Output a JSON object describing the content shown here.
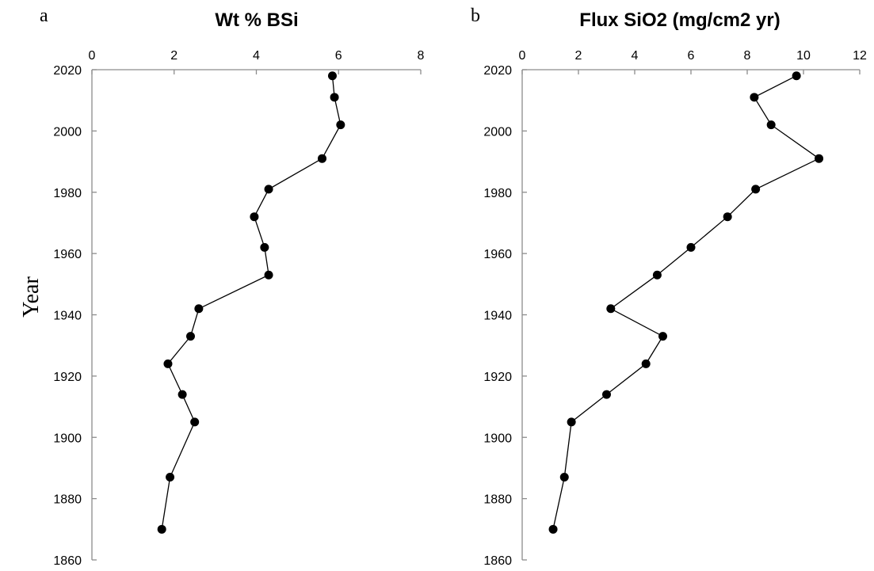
{
  "figure": {
    "ylabel": "Year",
    "colors": {
      "marker": "#000000",
      "line": "#000000",
      "axis": "#8c8c8c"
    }
  },
  "chart_data": [
    {
      "type": "line",
      "panel": "a",
      "title": "Wt % BSi",
      "xlabel": "",
      "ylabel": "Year",
      "xlim": [
        0,
        8
      ],
      "ylim": [
        1860,
        2020
      ],
      "x_ticks": [
        0,
        2,
        4,
        6,
        8
      ],
      "y_ticks": [
        1860,
        1880,
        1900,
        1920,
        1940,
        1960,
        1980,
        2000,
        2020
      ],
      "x_axis_position": "top",
      "y_reversed": false,
      "grid": false,
      "legend": "none",
      "series": [
        {
          "x": [
            5.85,
            5.9,
            6.05,
            5.6,
            4.3,
            3.95,
            4.2,
            4.3,
            2.6,
            2.4,
            1.85,
            2.2,
            2.5,
            1.9,
            1.7
          ],
          "y": [
            2018,
            2011,
            2002,
            1991,
            1981,
            1972,
            1962,
            1953,
            1942,
            1933,
            1924,
            1914,
            1905,
            1887,
            1870
          ]
        }
      ]
    },
    {
      "type": "line",
      "panel": "b",
      "title": "Flux SiO2 (mg/cm2 yr)",
      "xlabel": "",
      "ylabel": "",
      "xlim": [
        0,
        12
      ],
      "ylim": [
        1860,
        2020
      ],
      "x_ticks": [
        0,
        2,
        4,
        6,
        8,
        10,
        12
      ],
      "y_ticks": [
        1860,
        1880,
        1900,
        1920,
        1940,
        1960,
        1980,
        2000,
        2020
      ],
      "x_axis_position": "top",
      "y_reversed": false,
      "grid": false,
      "legend": "none",
      "series": [
        {
          "x": [
            9.75,
            8.25,
            8.85,
            10.55,
            8.3,
            7.3,
            6.0,
            4.8,
            3.15,
            5.0,
            4.4,
            3.0,
            1.75,
            1.5,
            1.1
          ],
          "y": [
            2018,
            2011,
            2002,
            1991,
            1981,
            1972,
            1962,
            1953,
            1942,
            1933,
            1924,
            1914,
            1905,
            1887,
            1870
          ]
        }
      ]
    }
  ]
}
